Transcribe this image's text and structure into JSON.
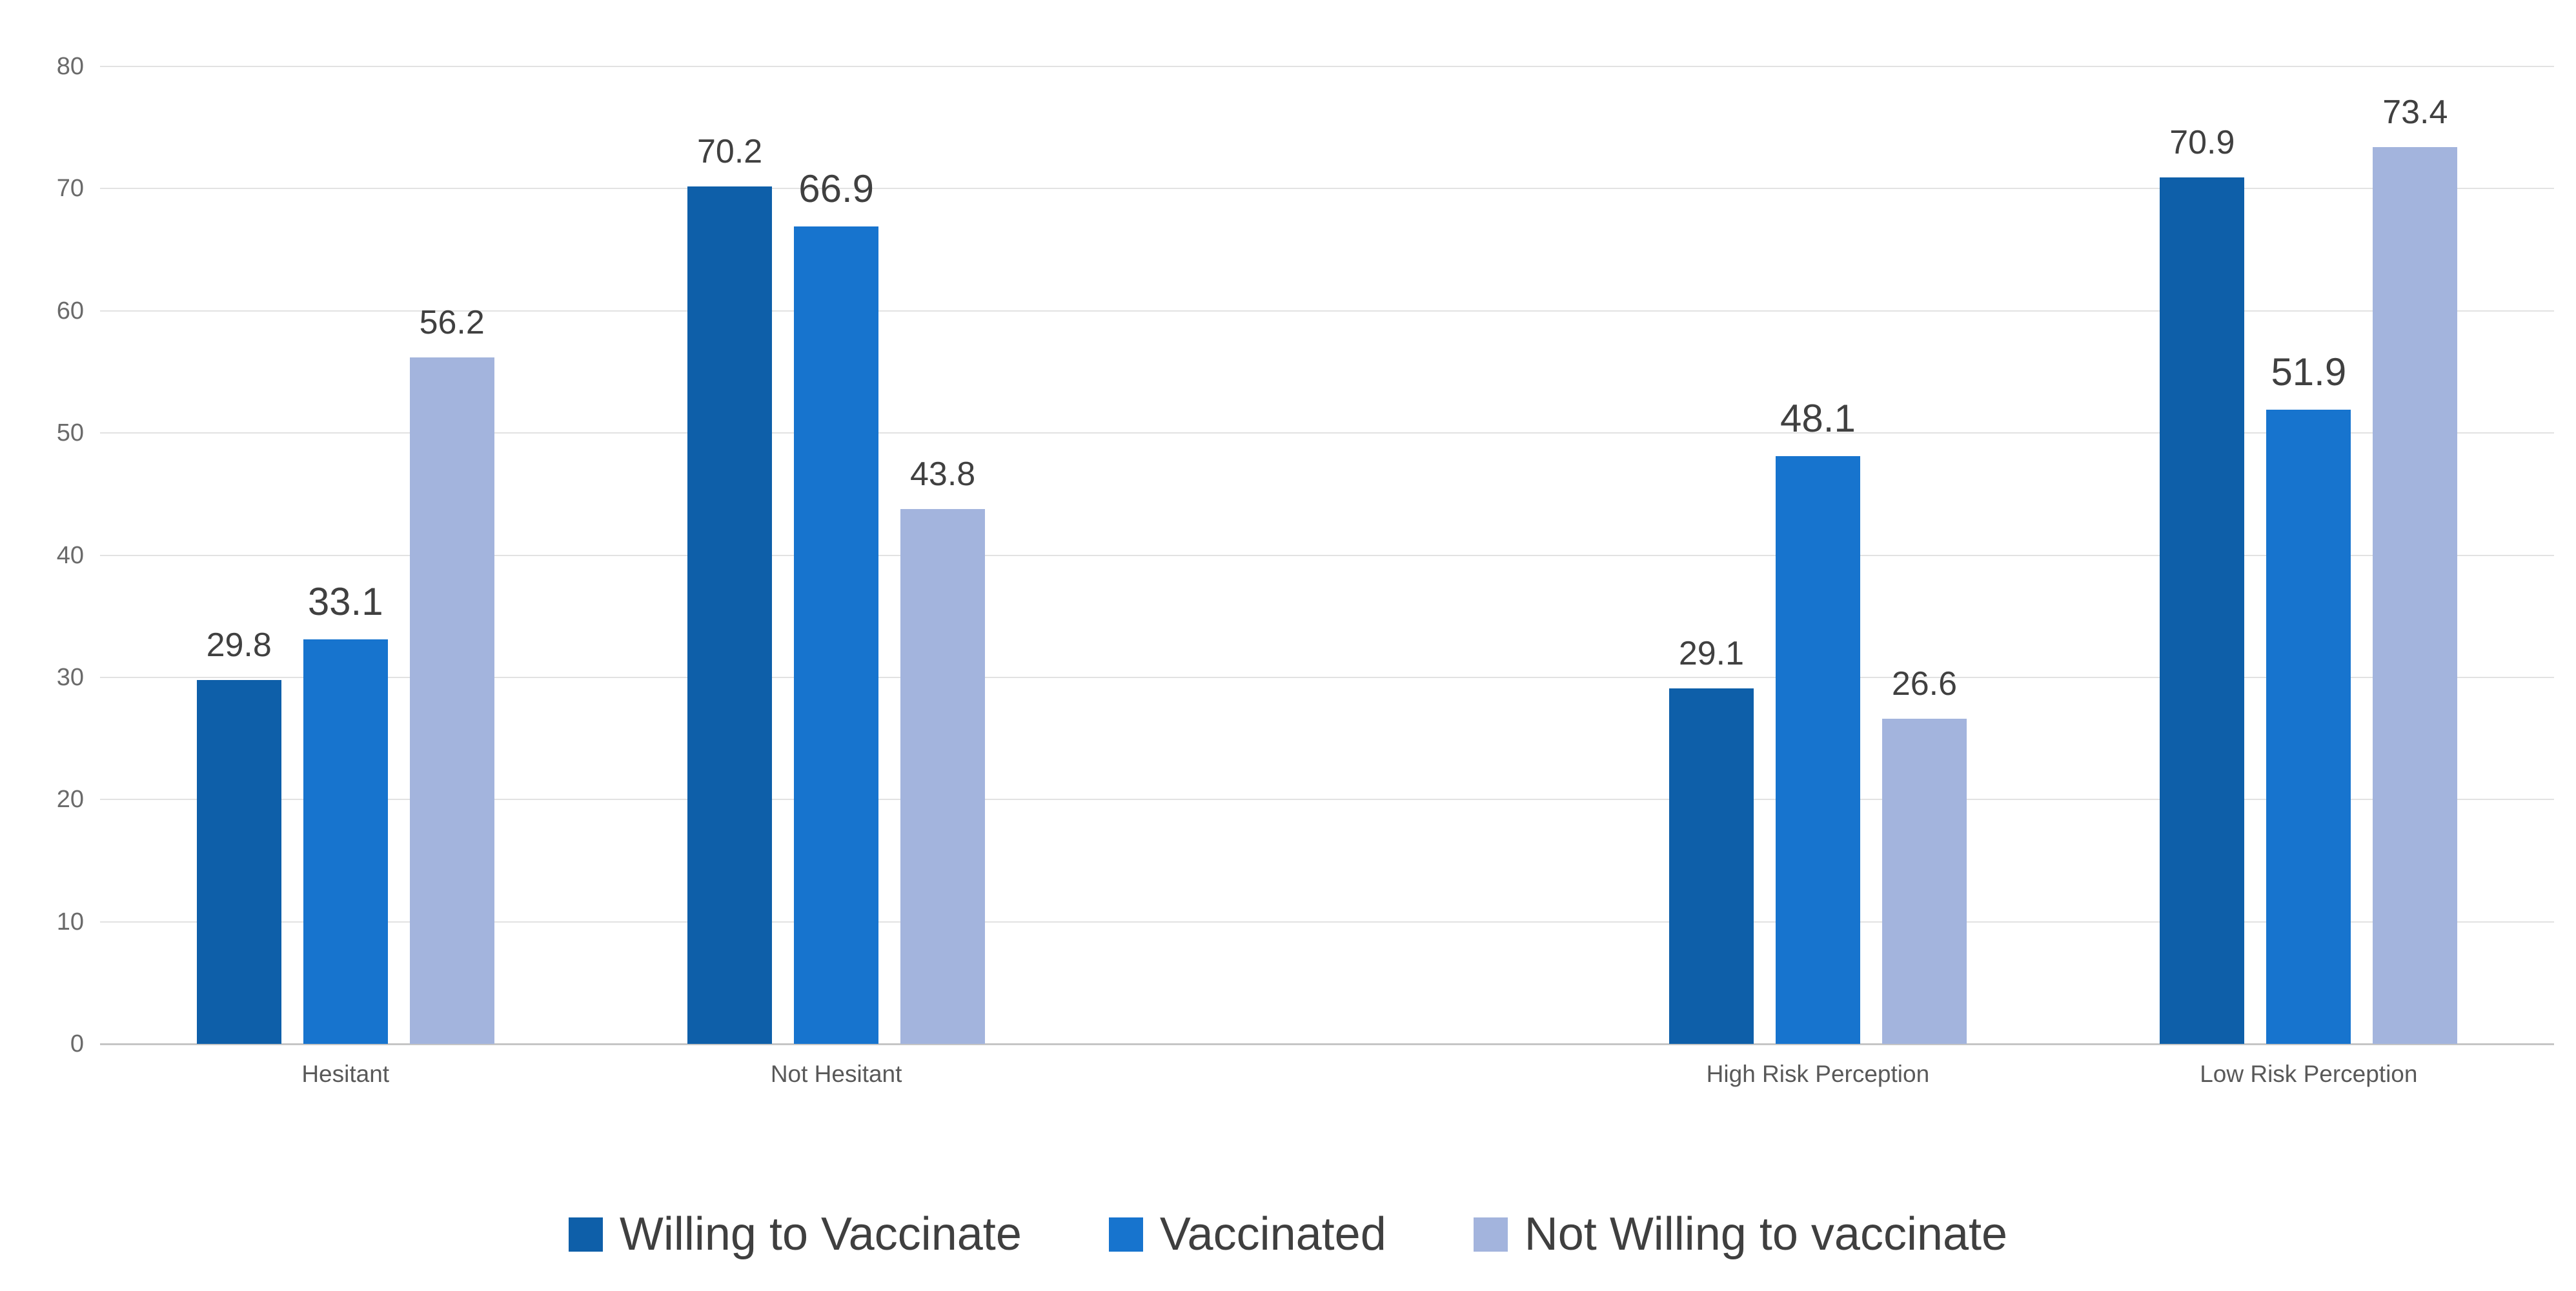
{
  "chart_data": {
    "type": "bar",
    "categories": [
      "Hesitant",
      "Not Hesitant",
      "High Risk Perception",
      "Low Risk Perception"
    ],
    "series": [
      {
        "name": "Willing to Vaccinate",
        "color": "#0e5fa9",
        "values": [
          29.8,
          70.2,
          29.1,
          70.9
        ]
      },
      {
        "name": "Vaccinated",
        "color": "#1774ce",
        "values": [
          33.1,
          66.9,
          48.1,
          51.9
        ]
      },
      {
        "name": "Not Willing to vaccinate",
        "color": "#a3b4dd",
        "values": [
          56.2,
          43.8,
          26.6,
          73.4
        ]
      }
    ],
    "title": "",
    "xlabel": "",
    "ylabel": "",
    "ylim": [
      0,
      80
    ],
    "ytick_step": 10,
    "ytick_labels": [
      "0",
      "10",
      "20",
      "30",
      "40",
      "50",
      "60",
      "70",
      "80"
    ],
    "grid": true,
    "value_labels": true,
    "legend_position": "bottom",
    "empty_slot_after_category_index": 1
  },
  "colors": {
    "gridline": "#e2e2e2",
    "axis_baseline": "#c6c6c6",
    "tick_label": "#6a6a6a",
    "category_label": "#595959",
    "value_label": "#404040",
    "legend_label": "#3f3f3f",
    "background": "#ffffff"
  }
}
